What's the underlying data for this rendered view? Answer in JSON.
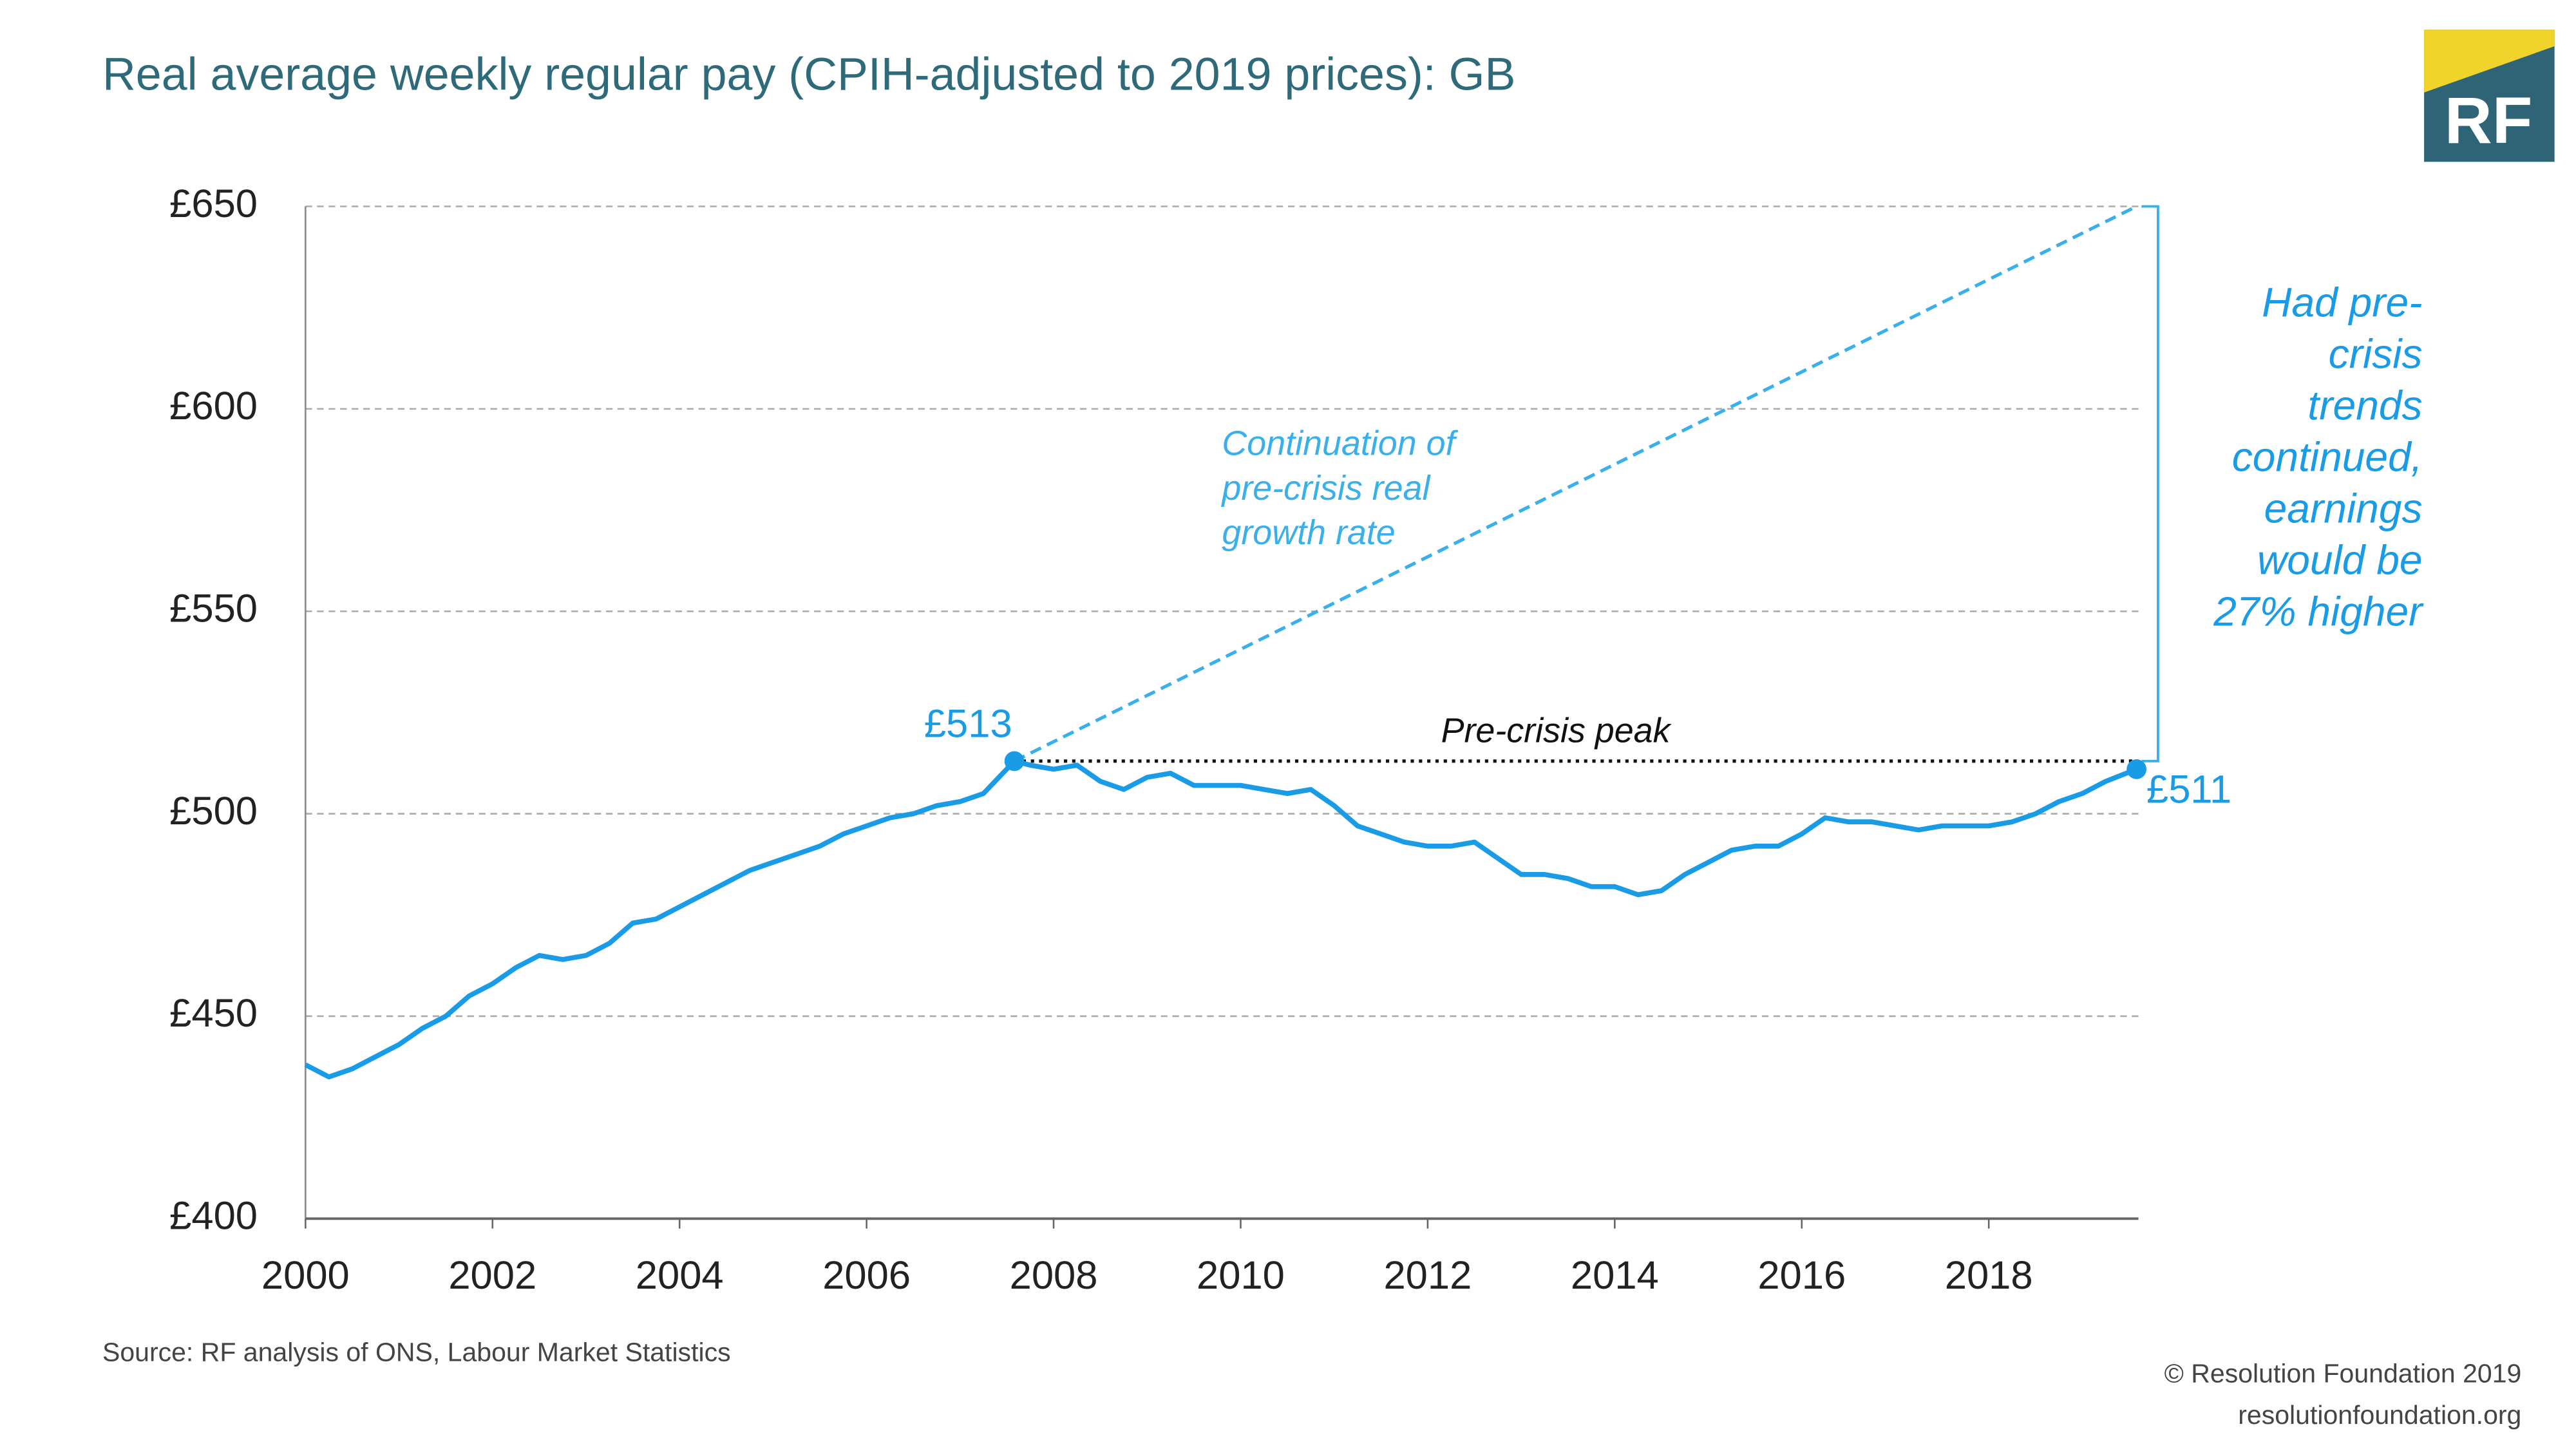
{
  "chart_data": {
    "type": "line",
    "title": "Real average weekly regular pay (CPIH-adjusted to 2019 prices): GB",
    "source": "Source: RF analysis of ONS, Labour Market Statistics",
    "copyright": "© Resolution Foundation 2019",
    "url": "resolutionfoundation.org",
    "logo": "RF",
    "x": [
      2000.0,
      2000.25,
      2000.5,
      2000.75,
      2001.0,
      2001.25,
      2001.5,
      2001.75,
      2002.0,
      2002.25,
      2002.5,
      2002.75,
      2003.0,
      2003.25,
      2003.5,
      2003.75,
      2004.0,
      2004.25,
      2004.5,
      2004.75,
      2005.0,
      2005.25,
      2005.5,
      2005.75,
      2006.0,
      2006.25,
      2006.5,
      2006.75,
      2007.0,
      2007.25,
      2007.58,
      2007.75,
      2008.0,
      2008.25,
      2008.5,
      2008.75,
      2009.0,
      2009.25,
      2009.5,
      2009.75,
      2010.0,
      2010.25,
      2010.5,
      2010.75,
      2011.0,
      2011.25,
      2011.5,
      2011.75,
      2012.0,
      2012.25,
      2012.5,
      2012.75,
      2013.0,
      2013.25,
      2013.5,
      2013.75,
      2014.0,
      2014.25,
      2014.5,
      2014.75,
      2015.0,
      2015.25,
      2015.5,
      2015.75,
      2016.0,
      2016.25,
      2016.5,
      2016.75,
      2017.0,
      2017.25,
      2017.5,
      2017.75,
      2018.0,
      2018.25,
      2018.5,
      2018.75,
      2019.0,
      2019.25,
      2019.58
    ],
    "series": [
      {
        "color": "#1a9be6",
        "values": [
          438,
          435,
          437,
          440,
          443,
          447,
          450,
          455,
          458,
          462,
          465,
          464,
          465,
          468,
          473,
          474,
          477,
          480,
          483,
          486,
          488,
          490,
          492,
          495,
          497,
          499,
          500,
          502,
          503,
          505,
          513,
          512,
          511,
          512,
          508,
          506,
          509,
          510,
          507,
          507,
          507,
          506,
          505,
          506,
          502,
          497,
          495,
          493,
          492,
          492,
          493,
          489,
          485,
          485,
          484,
          482,
          482,
          480,
          481,
          485,
          488,
          491,
          492,
          492,
          495,
          499,
          498,
          498,
          497,
          496,
          497,
          497,
          497,
          498,
          500,
          503,
          505,
          508,
          511
        ]
      }
    ],
    "points": [
      {
        "x": 2007.58,
        "value": 513,
        "label": "£513"
      },
      {
        "x": 2019.58,
        "value": 511,
        "label": "£511"
      }
    ],
    "trend": {
      "color": "#3ab0ea",
      "x": [
        2007.58,
        2019.58
      ],
      "values": [
        513,
        650
      ],
      "annotation": [
        "Continuation of",
        "pre-crisis real",
        "growth rate"
      ]
    },
    "peak": {
      "value": 513,
      "x": [
        2007.58,
        2019.58
      ],
      "label": "Pre-crisis peak"
    },
    "gap_annotation": [
      "Had pre-",
      "crisis",
      "trends",
      "continued,",
      "earnings",
      "would be",
      "27% higher"
    ],
    "xlim": [
      2000,
      2019.6
    ],
    "xticks": [
      2000,
      2002,
      2004,
      2006,
      2008,
      2010,
      2012,
      2014,
      2016,
      2018
    ],
    "ylim": [
      400,
      650
    ],
    "yticks": [
      {
        "value": 400,
        "label": "£400"
      },
      {
        "value": 450,
        "label": "£450"
      },
      {
        "value": 500,
        "label": "£500"
      },
      {
        "value": 550,
        "label": "£550"
      },
      {
        "value": 600,
        "label": "£600"
      },
      {
        "value": 650,
        "label": "£650"
      }
    ],
    "grid": true
  }
}
